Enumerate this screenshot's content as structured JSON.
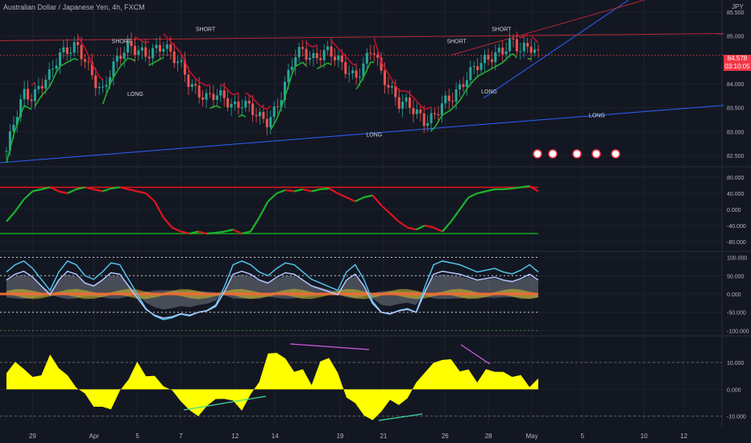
{
  "header": {
    "title": "Australian Dollar / Japanese Yen, 4h, FXCM",
    "currency": "JPY"
  },
  "last_price": {
    "value": "84.578",
    "countdown": "03:10:05"
  },
  "colors": {
    "bg": "#131722",
    "up": "#26a69a",
    "down": "#ef5350",
    "grid": "#1e222d",
    "axis_text": "#b2b5be",
    "yellow": "#ffff00",
    "green": "#1b9e20",
    "red": "#e8121b"
  },
  "chart_data": [
    {
      "type": "candlestick",
      "name": "price",
      "ylim": [
        82.3,
        85.75
      ],
      "y_ticks": [
        "85.500",
        "85.000",
        "84.000",
        "83.500",
        "83.000",
        "82.500"
      ],
      "y_tick_values": [
        85.5,
        85.0,
        84.0,
        83.5,
        83.0,
        82.5
      ],
      "signals": [
        {
          "label": "SHORT",
          "x_frac": 0.168,
          "y": 84.85
        },
        {
          "label": "LONG",
          "x_frac": 0.187,
          "y": 83.75
        },
        {
          "label": "SHORT",
          "x_frac": 0.284,
          "y": 85.1
        },
        {
          "label": "LONG",
          "x_frac": 0.517,
          "y": 82.9
        },
        {
          "label": "SHORT",
          "x_frac": 0.631,
          "y": 84.85
        },
        {
          "label": "SHORT",
          "x_frac": 0.693,
          "y": 85.1
        },
        {
          "label": "LONG",
          "x_frac": 0.676,
          "y": 83.8
        },
        {
          "label": "LONG",
          "x_frac": 0.825,
          "y": 83.3
        }
      ],
      "close_path": [
        82.6,
        83.3,
        83.8,
        83.7,
        84.0,
        84.2,
        84.6,
        84.7,
        84.8,
        84.5,
        84.1,
        83.8,
        84.3,
        84.6,
        84.8,
        84.7,
        84.6,
        84.7,
        84.8,
        84.6,
        84.4,
        84.0,
        83.8,
        83.7,
        83.8,
        83.7,
        83.5,
        83.6,
        83.5,
        83.3,
        83.2,
        83.5,
        84.0,
        84.6,
        84.7,
        84.5,
        84.6,
        84.7,
        84.5,
        84.3,
        84.1,
        84.4,
        84.8,
        84.2,
        83.9,
        83.6,
        83.6,
        83.4,
        83.2,
        83.3,
        83.6,
        83.7,
        83.9,
        84.2,
        84.4,
        84.5,
        84.6,
        84.7,
        84.9,
        84.7,
        84.8,
        84.6
      ]
    },
    {
      "type": "line",
      "name": "oscillator-1",
      "ylim": [
        -100,
        100
      ],
      "y_ticks": [
        "80.000",
        "40.000",
        "0.000",
        "-40.000",
        "-80.000"
      ],
      "y_tick_values": [
        80,
        40,
        0,
        -40,
        -80
      ],
      "upper_level": 55,
      "lower_level": -60,
      "values": [
        -30,
        -5,
        25,
        45,
        50,
        55,
        45,
        40,
        50,
        55,
        50,
        45,
        52,
        55,
        50,
        45,
        40,
        20,
        -20,
        -45,
        -55,
        -60,
        -55,
        -60,
        -58,
        -55,
        -50,
        -60,
        -55,
        -20,
        20,
        40,
        48,
        45,
        50,
        45,
        50,
        52,
        40,
        30,
        20,
        30,
        35,
        10,
        -10,
        -30,
        -45,
        -50,
        -40,
        -45,
        -55,
        -30,
        0,
        30,
        40,
        45,
        50,
        50,
        52,
        55,
        58,
        45
      ]
    },
    {
      "type": "line",
      "name": "oscillator-2",
      "ylim": [
        -110,
        110
      ],
      "y_ticks": [
        "100.000",
        "50.000",
        "0.000",
        "-50.000",
        "-100.000"
      ],
      "y_tick_values": [
        100,
        50,
        0,
        -50,
        -100
      ],
      "values": [
        60,
        80,
        90,
        70,
        40,
        10,
        60,
        90,
        80,
        50,
        40,
        60,
        85,
        80,
        40,
        0,
        -40,
        -60,
        -70,
        -65,
        -55,
        -60,
        -50,
        -45,
        -30,
        20,
        80,
        90,
        80,
        60,
        50,
        70,
        85,
        80,
        60,
        40,
        30,
        20,
        10,
        60,
        80,
        40,
        -20,
        -50,
        -55,
        -45,
        -40,
        -50,
        20,
        80,
        90,
        85,
        80,
        70,
        60,
        65,
        70,
        60,
        55,
        65,
        80,
        60
      ]
    },
    {
      "type": "area",
      "name": "histogram",
      "ylim": [
        -14,
        19
      ],
      "y_ticks": [
        "10.000",
        "0.000",
        "-10.000"
      ],
      "y_tick_values": [
        10,
        0,
        -10
      ],
      "values": [
        6,
        10,
        8,
        4,
        6,
        12,
        9,
        4,
        2,
        -3,
        -5,
        -8,
        -6,
        -2,
        5,
        9,
        6,
        4,
        2,
        -1,
        -4,
        -8,
        -10,
        -6,
        -4,
        -3,
        -5,
        -7,
        -3,
        4,
        12,
        15,
        10,
        8,
        6,
        3,
        9,
        13,
        5,
        -2,
        -6,
        -9,
        -12,
        -8,
        -4,
        -6,
        -3,
        2,
        7,
        9,
        12,
        10,
        8,
        6,
        4,
        6,
        8,
        5,
        6,
        4,
        2,
        3
      ]
    }
  ],
  "x_axis": {
    "labels": [
      "29",
      "Apr",
      "5",
      "7",
      "12",
      "14",
      "19",
      "21",
      "26",
      "28",
      "May",
      "5",
      "10",
      "12"
    ],
    "positions_frac": [
      0.045,
      0.13,
      0.19,
      0.25,
      0.325,
      0.38,
      0.47,
      0.53,
      0.615,
      0.675,
      0.735,
      0.805,
      0.89,
      0.945
    ]
  }
}
